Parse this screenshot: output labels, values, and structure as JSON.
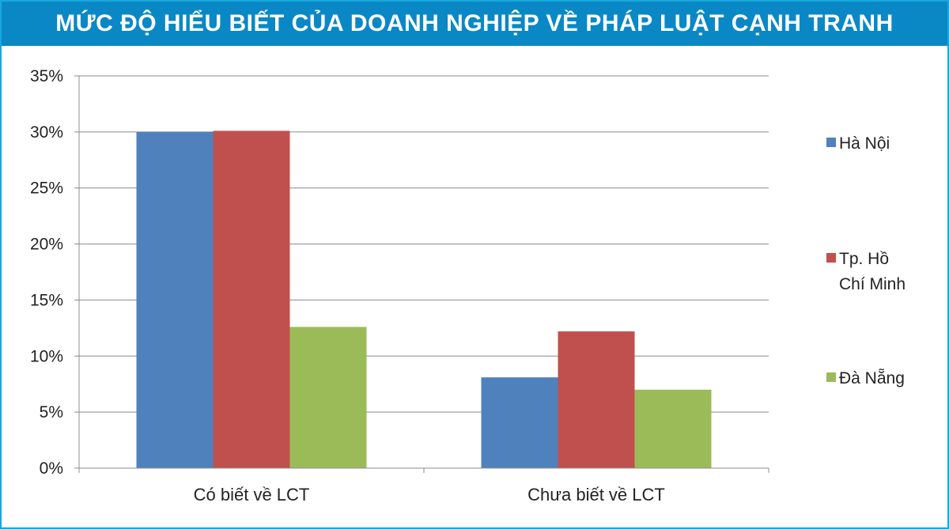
{
  "title": "MỨC ĐỘ HIỂU BIẾT CỦA DOANH NGHIỆP VỀ PHÁP LUẬT CẠNH TRANH",
  "colors": {
    "title_bg": "#0a88c6",
    "frame": "#18a7dc"
  },
  "chart_data": {
    "type": "bar",
    "categories": [
      "Có biết về LCT",
      "Chưa biết về LCT"
    ],
    "series": [
      {
        "name": "Hà Nội",
        "values": [
          30,
          8.1
        ],
        "color": "#4f81bd"
      },
      {
        "name": "Tp. Hồ Chí Minh",
        "values": [
          30.1,
          12.2
        ],
        "color": "#c0504d"
      },
      {
        "name": "Đà Nẵng",
        "values": [
          12.6,
          7
        ],
        "color": "#9bbb59"
      }
    ],
    "ylim": [
      0,
      35
    ],
    "yticks": [
      "0%",
      "5%",
      "10%",
      "15%",
      "20%",
      "25%",
      "30%",
      "35%"
    ],
    "legend_position": "right",
    "grid": true
  }
}
